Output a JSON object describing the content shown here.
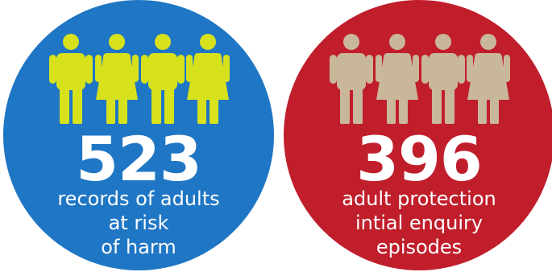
{
  "stats": [
    {
      "number": "523",
      "caption_lines": [
        "records of adults",
        "at risk",
        "of harm"
      ],
      "circle_color": "#1f76c4",
      "figure_color": "#d7e21c",
      "figures": [
        "male-figure-icon",
        "female-figure-icon",
        "male-figure-icon",
        "female-figure-icon"
      ]
    },
    {
      "number": "396",
      "caption_lines": [
        "adult protection",
        "intial enquiry",
        "episodes"
      ],
      "circle_color": "#c11e2c",
      "figure_color": "#c9b79b",
      "figures": [
        "male-figure-icon",
        "female-figure-icon",
        "male-figure-icon",
        "female-figure-icon"
      ]
    }
  ]
}
